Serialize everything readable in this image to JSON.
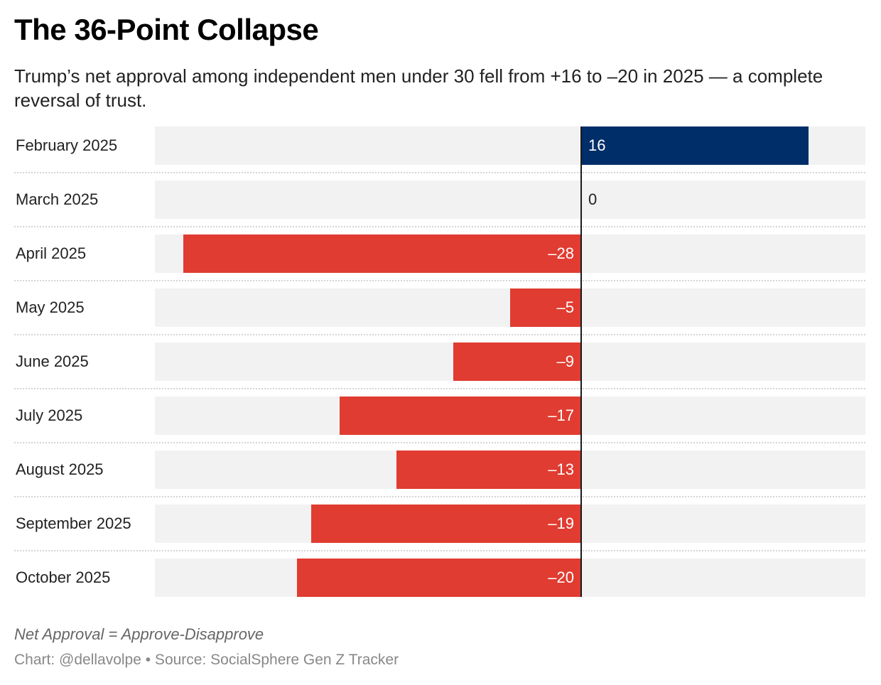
{
  "chart_data": {
    "type": "bar",
    "orientation": "horizontal",
    "title": "The 36-Point Collapse",
    "subtitle": "Trump’s net approval among independent men under 30 fell from +16 to –20 in 2025 — a complete reversal of trust.",
    "categories": [
      "February 2025",
      "March 2025",
      "April 2025",
      "May 2025",
      "June 2025",
      "July 2025",
      "August 2025",
      "September 2025",
      "October 2025"
    ],
    "values": [
      16,
      0,
      -28,
      -5,
      -9,
      -17,
      -13,
      -19,
      -20
    ],
    "value_labels": [
      "16",
      "0",
      "–28",
      "–5",
      "–9",
      "–17",
      "–13",
      "–19",
      "–20"
    ],
    "xlim": [
      -30,
      20
    ],
    "xlabel": "",
    "ylabel": "",
    "grid": false,
    "colors": {
      "positive": "#002e69",
      "negative": "#e03c31",
      "background_bar": "#f2f2f2"
    },
    "notes": "Net Approval = Approve-Disapprove",
    "source": "Chart: @dellavolpe • Source: SocialSphere Gen Z Tracker"
  }
}
